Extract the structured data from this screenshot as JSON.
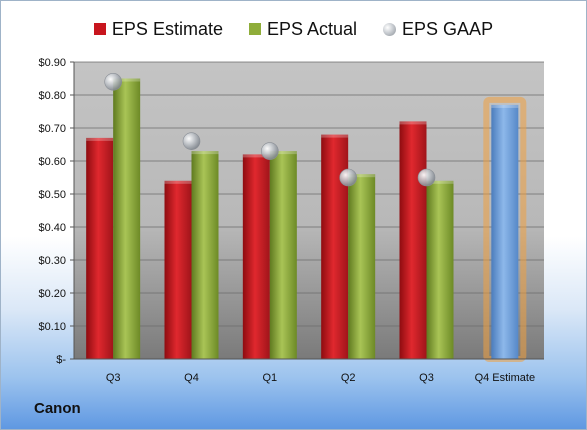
{
  "legend": [
    {
      "name": "EPS Estimate",
      "color": "#c8161e"
    },
    {
      "name": "EPS Actual",
      "color": "#8fad3a"
    },
    {
      "name": "EPS GAAP",
      "color": "#b4b8bd"
    }
  ],
  "company": "Canon",
  "chart_data": {
    "type": "bar",
    "categories": [
      "Q3",
      "Q4",
      "Q1",
      "Q2",
      "Q3",
      "Q4 Estimate"
    ],
    "series": [
      {
        "name": "EPS Estimate",
        "type": "bar",
        "color": "#c8161e",
        "values": [
          0.67,
          0.54,
          0.62,
          0.68,
          0.72,
          null
        ]
      },
      {
        "name": "EPS Actual",
        "type": "bar",
        "color": "#8fad3a",
        "values": [
          0.85,
          0.63,
          0.63,
          0.56,
          0.54,
          null
        ]
      },
      {
        "name": "EPS GAAP",
        "type": "scatter",
        "color": "#b4b8bd",
        "values": [
          0.84,
          0.66,
          0.63,
          0.55,
          0.55,
          null
        ]
      },
      {
        "name": "Q4 Estimate",
        "type": "bar",
        "color": "#6f9fd8",
        "highlight": "#f0a040",
        "values": [
          null,
          null,
          null,
          null,
          null,
          0.77
        ]
      }
    ],
    "yticks": [
      "$-",
      "$0.10",
      "$0.20",
      "$0.30",
      "$0.40",
      "$0.50",
      "$0.60",
      "$0.70",
      "$0.80",
      "$0.90"
    ],
    "ylim": [
      0,
      0.9
    ],
    "grid": true,
    "legend_position": "top"
  }
}
